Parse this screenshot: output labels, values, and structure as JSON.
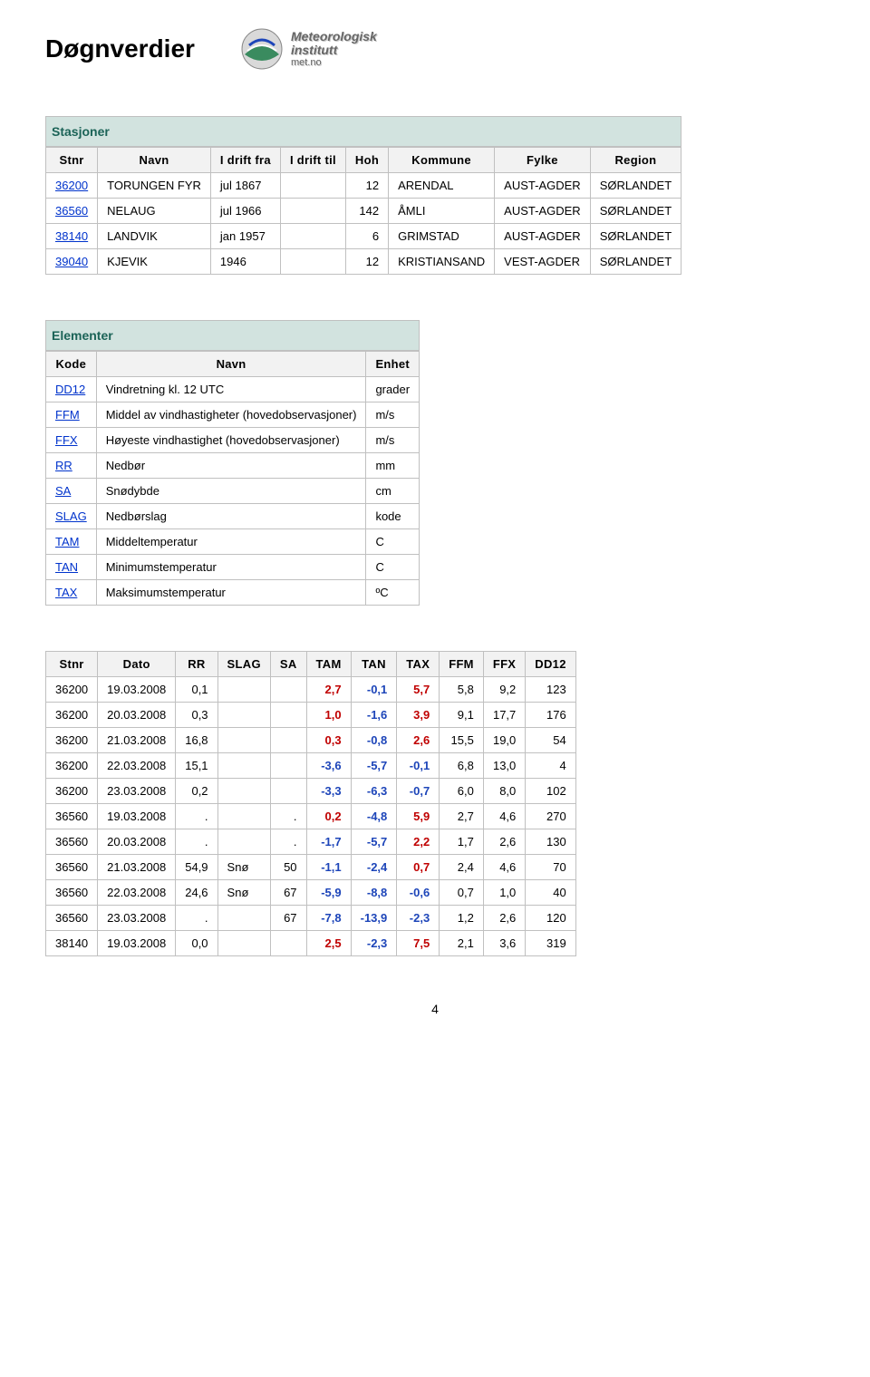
{
  "page": {
    "title": "Døgnverdier",
    "logo_line1": "Meteorologisk",
    "logo_line2": "institutt",
    "logo_line3": "met.no",
    "page_number": "4"
  },
  "stations": {
    "caption": "Stasjoner",
    "columns": [
      "Stnr",
      "Navn",
      "I drift fra",
      "I drift til",
      "Hoh",
      "Kommune",
      "Fylke",
      "Region"
    ],
    "rows": [
      {
        "stnr": "36200",
        "navn": "TORUNGEN FYR",
        "fra": "jul 1867",
        "til": "",
        "hoh": "12",
        "kommune": "ARENDAL",
        "fylke": "AUST-AGDER",
        "region": "SØRLANDET"
      },
      {
        "stnr": "36560",
        "navn": "NELAUG",
        "fra": "jul 1966",
        "til": "",
        "hoh": "142",
        "kommune": "ÅMLI",
        "fylke": "AUST-AGDER",
        "region": "SØRLANDET"
      },
      {
        "stnr": "38140",
        "navn": "LANDVIK",
        "fra": "jan 1957",
        "til": "",
        "hoh": "6",
        "kommune": "GRIMSTAD",
        "fylke": "AUST-AGDER",
        "region": "SØRLANDET"
      },
      {
        "stnr": "39040",
        "navn": "KJEVIK",
        "fra": "1946",
        "til": "",
        "hoh": "12",
        "kommune": "KRISTIANSAND",
        "fylke": "VEST-AGDER",
        "region": "SØRLANDET"
      }
    ]
  },
  "elements": {
    "caption": "Elementer",
    "columns": [
      "Kode",
      "Navn",
      "Enhet"
    ],
    "rows": [
      {
        "kode": "DD12",
        "navn": "Vindretning kl. 12 UTC",
        "enhet": "grader"
      },
      {
        "kode": "FFM",
        "navn": "Middel av vindhastigheter (hovedobservasjoner)",
        "enhet": "m/s"
      },
      {
        "kode": "FFX",
        "navn": "Høyeste vindhastighet (hovedobservasjoner)",
        "enhet": "m/s"
      },
      {
        "kode": "RR",
        "navn": "Nedbør",
        "enhet": "mm"
      },
      {
        "kode": "SA",
        "navn": "Snødybde",
        "enhet": "cm"
      },
      {
        "kode": "SLAG",
        "navn": "Nedbørslag",
        "enhet": "kode"
      },
      {
        "kode": "TAM",
        "navn": "Middeltemperatur",
        "enhet": "C"
      },
      {
        "kode": "TAN",
        "navn": "Minimumstemperatur",
        "enhet": "C"
      },
      {
        "kode": "TAX",
        "navn": "Maksimumstemperatur",
        "enhet": "ºC"
      }
    ]
  },
  "data": {
    "columns": [
      "Stnr",
      "Dato",
      "RR",
      "SLAG",
      "SA",
      "TAM",
      "TAN",
      "TAX",
      "FFM",
      "FFX",
      "DD12"
    ],
    "colors": {
      "tam": "#c00000",
      "tan": "#1d45b9",
      "tax": "#c00000",
      "neg": "#1d45b9"
    },
    "rows": [
      {
        "stnr": "36200",
        "dato": "19.03.2008",
        "rr": "0,1",
        "slag": "",
        "sa": "",
        "tam": "2,7",
        "tan": "-0,1",
        "tax": "5,7",
        "ffm": "5,8",
        "ffx": "9,2",
        "dd12": "123"
      },
      {
        "stnr": "36200",
        "dato": "20.03.2008",
        "rr": "0,3",
        "slag": "",
        "sa": "",
        "tam": "1,0",
        "tan": "-1,6",
        "tax": "3,9",
        "ffm": "9,1",
        "ffx": "17,7",
        "dd12": "176"
      },
      {
        "stnr": "36200",
        "dato": "21.03.2008",
        "rr": "16,8",
        "slag": "",
        "sa": "",
        "tam": "0,3",
        "tan": "-0,8",
        "tax": "2,6",
        "ffm": "15,5",
        "ffx": "19,0",
        "dd12": "54"
      },
      {
        "stnr": "36200",
        "dato": "22.03.2008",
        "rr": "15,1",
        "slag": "",
        "sa": "",
        "tam": "-3,6",
        "tan": "-5,7",
        "tax": "-0,1",
        "ffm": "6,8",
        "ffx": "13,0",
        "dd12": "4"
      },
      {
        "stnr": "36200",
        "dato": "23.03.2008",
        "rr": "0,2",
        "slag": "",
        "sa": "",
        "tam": "-3,3",
        "tan": "-6,3",
        "tax": "-0,7",
        "ffm": "6,0",
        "ffx": "8,0",
        "dd12": "102"
      },
      {
        "stnr": "36560",
        "dato": "19.03.2008",
        "rr": ".",
        "slag": "",
        "sa": ".",
        "tam": "0,2",
        "tan": "-4,8",
        "tax": "5,9",
        "ffm": "2,7",
        "ffx": "4,6",
        "dd12": "270"
      },
      {
        "stnr": "36560",
        "dato": "20.03.2008",
        "rr": ".",
        "slag": "",
        "sa": ".",
        "tam": "-1,7",
        "tan": "-5,7",
        "tax": "2,2",
        "ffm": "1,7",
        "ffx": "2,6",
        "dd12": "130"
      },
      {
        "stnr": "36560",
        "dato": "21.03.2008",
        "rr": "54,9",
        "slag": "Snø",
        "sa": "50",
        "tam": "-1,1",
        "tan": "-2,4",
        "tax": "0,7",
        "ffm": "2,4",
        "ffx": "4,6",
        "dd12": "70"
      },
      {
        "stnr": "36560",
        "dato": "22.03.2008",
        "rr": "24,6",
        "slag": "Snø",
        "sa": "67",
        "tam": "-5,9",
        "tan": "-8,8",
        "tax": "-0,6",
        "ffm": "0,7",
        "ffx": "1,0",
        "dd12": "40"
      },
      {
        "stnr": "36560",
        "dato": "23.03.2008",
        "rr": ".",
        "slag": "",
        "sa": "67",
        "tam": "-7,8",
        "tan": "-13,9",
        "tax": "-2,3",
        "ffm": "1,2",
        "ffx": "2,6",
        "dd12": "120"
      },
      {
        "stnr": "38140",
        "dato": "19.03.2008",
        "rr": "0,0",
        "slag": "",
        "sa": "",
        "tam": "2,5",
        "tan": "-2,3",
        "tax": "7,5",
        "ffm": "2,1",
        "ffx": "3,6",
        "dd12": "319"
      }
    ]
  }
}
